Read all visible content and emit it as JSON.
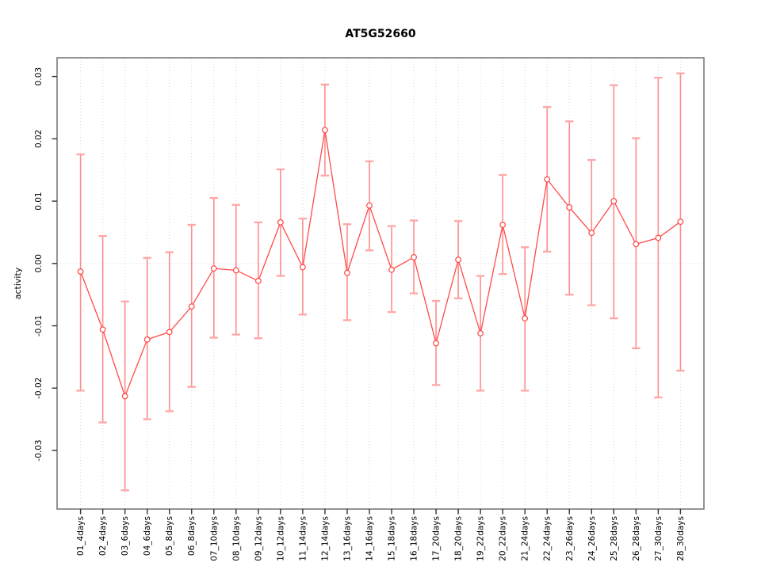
{
  "figure": {
    "title": "AT5G52660"
  },
  "chart_data": {
    "type": "line",
    "title": "AT5G52660",
    "xlabel": "",
    "ylabel": "activity",
    "legend": "none",
    "grid": {
      "vertical_dotted": true,
      "zero_line_dotted": true
    },
    "point_marker": "open-circle",
    "error_bars": true,
    "categories": [
      "01_4days",
      "02_4days",
      "03_6days",
      "04_6days",
      "05_8days",
      "06_8days",
      "07_10days",
      "08_10days",
      "09_12days",
      "10_12days",
      "11_14days",
      "12_14days",
      "13_16days",
      "14_16days",
      "15_18days",
      "16_18days",
      "17_20days",
      "18_20days",
      "19_22days",
      "20_22days",
      "21_24days",
      "22_24days",
      "23_26days",
      "24_26days",
      "25_28days",
      "26_28days",
      "27_30days",
      "28_30days"
    ],
    "values": [
      -0.0013,
      -0.0106,
      -0.0213,
      -0.0122,
      -0.011,
      -0.0069,
      -0.0008,
      -0.0011,
      -0.0028,
      0.0066,
      -0.0006,
      0.0214,
      -0.0015,
      0.0093,
      -0.001,
      0.001,
      -0.0128,
      0.0006,
      -0.0112,
      0.0062,
      -0.0088,
      0.0135,
      0.009,
      0.0049,
      0.01,
      0.0031,
      0.0041,
      0.0067
    ],
    "err_hi": [
      0.0175,
      0.0044,
      -0.0061,
      0.0009,
      0.0018,
      0.0062,
      0.0105,
      0.0094,
      0.0066,
      0.0151,
      0.0072,
      0.0287,
      0.0063,
      0.0164,
      0.006,
      0.0069,
      -0.006,
      0.0068,
      -0.002,
      0.0142,
      0.0026,
      0.0251,
      0.0228,
      0.0166,
      0.0286,
      0.0201,
      0.0298,
      0.0305
    ],
    "err_lo": [
      -0.0204,
      -0.0255,
      -0.0364,
      -0.025,
      -0.0237,
      -0.0198,
      -0.0119,
      -0.0114,
      -0.012,
      -0.002,
      -0.0082,
      0.0141,
      -0.0091,
      0.0021,
      -0.0078,
      -0.0048,
      -0.0195,
      -0.0056,
      -0.0204,
      -0.0017,
      -0.0204,
      0.0019,
      -0.005,
      -0.0067,
      -0.0088,
      -0.0136,
      -0.0215,
      -0.0172
    ],
    "yticks": [
      {
        "v": -0.03,
        "label": "-0.03"
      },
      {
        "v": -0.02,
        "label": "-0.02"
      },
      {
        "v": -0.01,
        "label": "-0.01"
      },
      {
        "v": 0.0,
        "label": "0.00"
      },
      {
        "v": 0.01,
        "label": "0.01"
      },
      {
        "v": 0.02,
        "label": "0.02"
      },
      {
        "v": 0.03,
        "label": "0.03"
      }
    ],
    "ylim": [
      -0.0394,
      0.033
    ],
    "colors": {
      "line": "#ff4a4a",
      "point_stroke": "#ff4a4a",
      "point_fill": "#ffffff",
      "error_bar": "#ff8c8c",
      "error_cap": "#ffa6a6",
      "grid": "#d9d9d9",
      "box": "#7a7a7a",
      "tick": "#333333",
      "text": "#000000"
    }
  }
}
